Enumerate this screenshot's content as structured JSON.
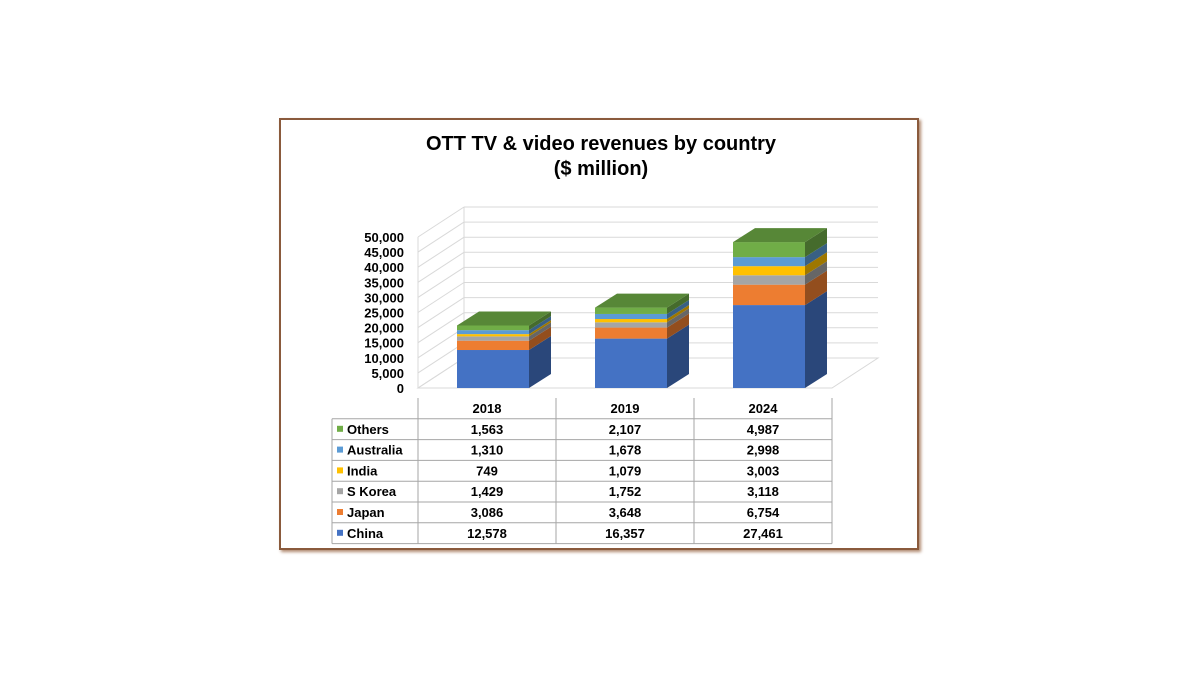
{
  "chart_data": {
    "type": "bar",
    "subtype": "stacked-3d-with-data-table",
    "title": "OTT TV & video revenues by country",
    "subtitle": "($ million)",
    "categories": [
      "2018",
      "2019",
      "2024"
    ],
    "ylim": [
      0,
      50000
    ],
    "yticks": [
      "0",
      "5,000",
      "10,000",
      "15,000",
      "20,000",
      "25,000",
      "30,000",
      "35,000",
      "40,000",
      "45,000",
      "50,000"
    ],
    "grid": true,
    "series": [
      {
        "name": "China",
        "color": "#4472c4",
        "values": [
          12578,
          16357,
          27461
        ],
        "labels": [
          "12,578",
          "16,357",
          "27,461"
        ]
      },
      {
        "name": "Japan",
        "color": "#ed7d31",
        "values": [
          3086,
          3648,
          6754
        ],
        "labels": [
          "3,086",
          "3,648",
          "6,754"
        ]
      },
      {
        "name": "S Korea",
        "color": "#a5a5a5",
        "values": [
          1429,
          1752,
          3118
        ],
        "labels": [
          "1,429",
          "1,752",
          "3,118"
        ]
      },
      {
        "name": "India",
        "color": "#ffc000",
        "values": [
          749,
          1079,
          3003
        ],
        "labels": [
          "749",
          "1,079",
          "3,003"
        ]
      },
      {
        "name": "Australia",
        "color": "#5b9bd5",
        "values": [
          1310,
          1678,
          2998
        ],
        "labels": [
          "1,310",
          "1,678",
          "2,998"
        ]
      },
      {
        "name": "Others",
        "color": "#70ad47",
        "values": [
          1563,
          2107,
          4987
        ],
        "labels": [
          "1,563",
          "2,107",
          "4,987"
        ]
      }
    ]
  }
}
